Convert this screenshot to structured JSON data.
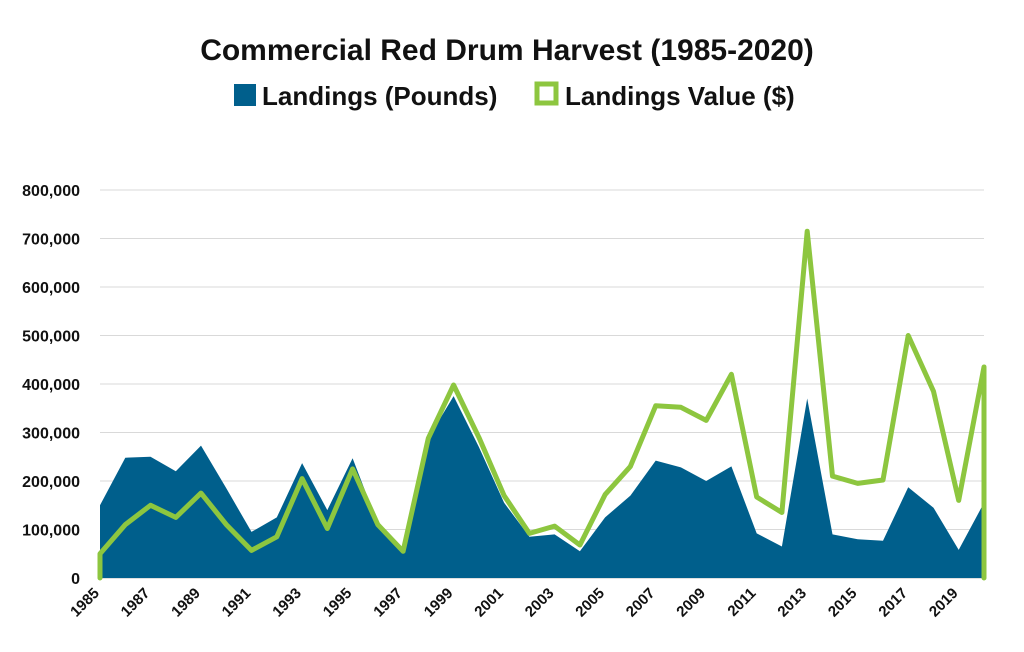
{
  "chart_data": {
    "type": "area",
    "title": "Commercial Red Drum Harvest (1985-2020)",
    "xlabel": "",
    "ylabel": "",
    "x": [
      1985,
      1986,
      1987,
      1988,
      1989,
      1990,
      1991,
      1992,
      1993,
      1994,
      1995,
      1996,
      1997,
      1998,
      1999,
      2000,
      2001,
      2002,
      2003,
      2004,
      2005,
      2006,
      2007,
      2008,
      2009,
      2010,
      2011,
      2012,
      2013,
      2014,
      2015,
      2016,
      2017,
      2018,
      2019,
      2020
    ],
    "x_tick_labels": [
      "1985",
      "1987",
      "1989",
      "1991",
      "1993",
      "1995",
      "1997",
      "1999",
      "2001",
      "2003",
      "2005",
      "2007",
      "2009",
      "2011",
      "2013",
      "2015",
      "2017",
      "2019"
    ],
    "y_tick_labels": [
      "0",
      "100,000",
      "200,000",
      "300,000",
      "400,000",
      "500,000",
      "600,000",
      "700,000",
      "800,000"
    ],
    "ylim": [
      0,
      800000
    ],
    "grid": true,
    "legend_position": "top-center",
    "series": [
      {
        "name": "Landings (Pounds)",
        "type": "area",
        "color": "#005f8c",
        "values": [
          150000,
          248000,
          250000,
          220000,
          273000,
          185000,
          95000,
          125000,
          237000,
          140000,
          247000,
          112000,
          57000,
          288000,
          375000,
          270000,
          155000,
          85000,
          90000,
          55000,
          125000,
          170000,
          242000,
          228000,
          200000,
          230000,
          92000,
          65000,
          370000,
          90000,
          80000,
          77000,
          187000,
          145000,
          58000,
          155000
        ]
      },
      {
        "name": "Landings Value ($)",
        "type": "line",
        "color": "#8dc63f",
        "values": [
          50000,
          110000,
          150000,
          125000,
          175000,
          110000,
          57000,
          85000,
          205000,
          102000,
          225000,
          110000,
          55000,
          288000,
          398000,
          290000,
          170000,
          92000,
          107000,
          68000,
          172000,
          230000,
          355000,
          352000,
          325000,
          420000,
          167000,
          135000,
          715000,
          210000,
          195000,
          202000,
          500000,
          385000,
          160000,
          435000
        ]
      }
    ]
  }
}
